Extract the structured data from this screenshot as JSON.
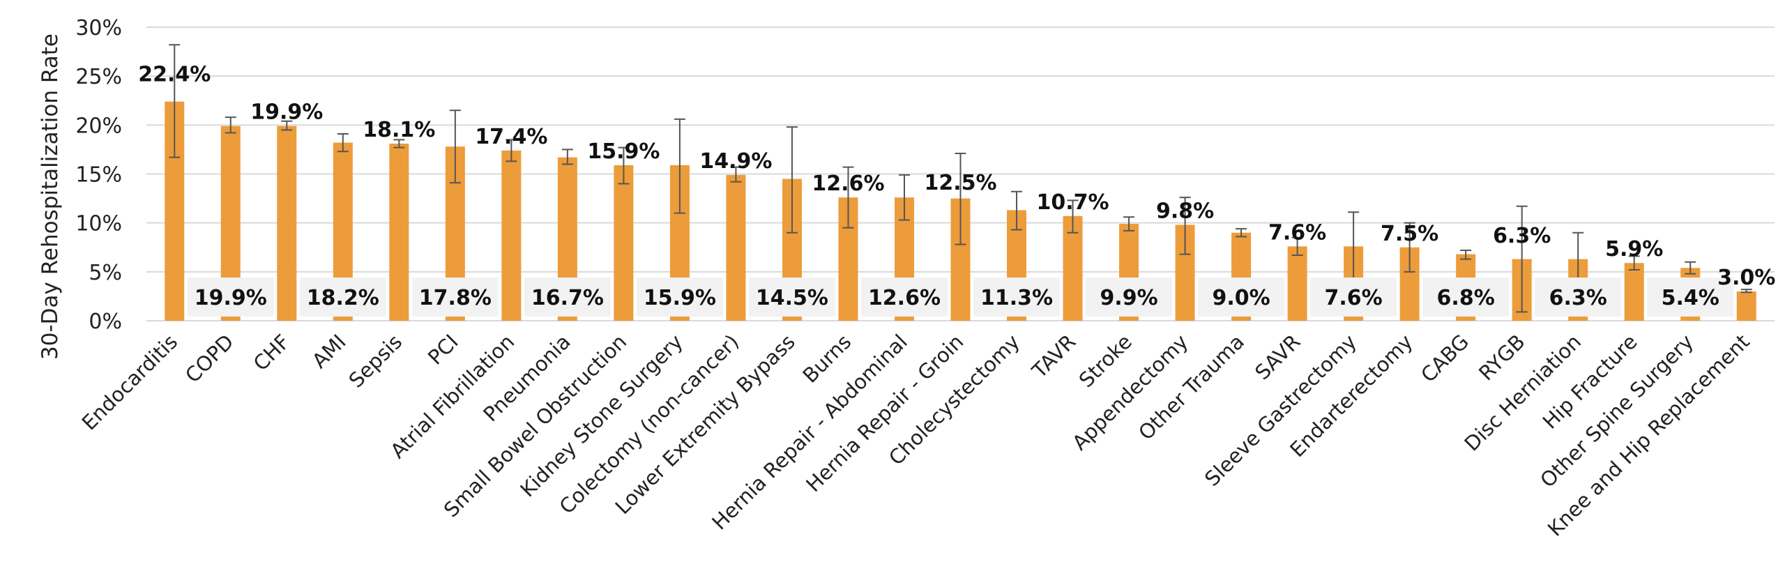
{
  "colors": {
    "bar": "#ED9C3B",
    "grid": "#D9D9D9",
    "errorbar": "#555555",
    "box": "#F2F2F2"
  },
  "chart_data": {
    "type": "bar",
    "ylabel": "30-Day Rehospitalization Rate",
    "ylim": [
      0,
      30
    ],
    "yticks": [
      "0%",
      "5%",
      "10%",
      "15%",
      "20%",
      "25%",
      "30%"
    ],
    "ytick_values": [
      0,
      5,
      10,
      15,
      20,
      25,
      30
    ],
    "grid": true,
    "categories": [
      "Endocarditis",
      "COPD",
      "CHF",
      "AMI",
      "Sepsis",
      "PCI",
      "Atrial Fibrillation",
      "Pneumonia",
      "Small Bowel Obstruction",
      "Kidney Stone Surgery",
      "Colectomy (non-cancer)",
      "Lower Extremity Bypass",
      "Burns",
      "Hernia Repair - Abdominal",
      "Hernia Repair - Groin",
      "Cholecystectomy",
      "TAVR",
      "Stroke",
      "Appendectomy",
      "Other Trauma",
      "SAVR",
      "Sleeve Gastrectomy",
      "Endarterectomy",
      "CABG",
      "RYGB",
      "Disc Herniation",
      "Hip Fracture",
      "Other Spine Surgery",
      "Knee and Hip Replacement"
    ],
    "values": [
      22.4,
      19.9,
      19.9,
      18.2,
      18.1,
      17.8,
      17.4,
      16.7,
      15.9,
      15.9,
      14.9,
      14.5,
      12.6,
      12.6,
      12.5,
      11.3,
      10.7,
      9.9,
      9.8,
      9.0,
      7.6,
      7.6,
      7.5,
      6.8,
      6.3,
      6.3,
      5.9,
      5.4,
      3.0
    ],
    "error_low": [
      16.7,
      19.2,
      19.5,
      17.3,
      17.7,
      14.1,
      16.3,
      16.0,
      14.0,
      11.0,
      14.2,
      9.0,
      9.5,
      10.3,
      7.8,
      9.3,
      9.0,
      9.2,
      6.8,
      8.6,
      6.7,
      4.0,
      5.0,
      6.3,
      0.9,
      4.0,
      5.2,
      4.8,
      2.9
    ],
    "error_high": [
      28.2,
      20.8,
      20.4,
      19.1,
      18.5,
      21.5,
      18.5,
      17.5,
      17.7,
      20.6,
      15.7,
      19.8,
      15.7,
      14.9,
      17.1,
      13.2,
      12.3,
      10.6,
      12.6,
      9.4,
      8.5,
      11.1,
      10.0,
      7.2,
      11.7,
      9.0,
      6.6,
      6.0,
      3.2
    ],
    "top_labels": [
      "22.4%",
      "",
      "19.9%",
      "",
      "18.1%",
      "",
      "17.4%",
      "",
      "15.9%",
      "",
      "14.9%",
      "",
      "12.6%",
      "",
      "12.5%",
      "",
      "10.7%",
      "",
      "9.8%",
      "",
      "7.6%",
      "",
      "7.5%",
      "",
      "6.3%",
      "",
      "5.9%",
      "",
      "3.0%"
    ],
    "box_labels": [
      "",
      "19.9%",
      "",
      "18.2%",
      "",
      "17.8%",
      "",
      "16.7%",
      "",
      "15.9%",
      "",
      "14.5%",
      "",
      "12.6%",
      "",
      "11.3%",
      "",
      "9.9%",
      "",
      "9.0%",
      "",
      "7.6%",
      "",
      "6.8%",
      "",
      "6.3%",
      "",
      "5.4%",
      ""
    ]
  }
}
